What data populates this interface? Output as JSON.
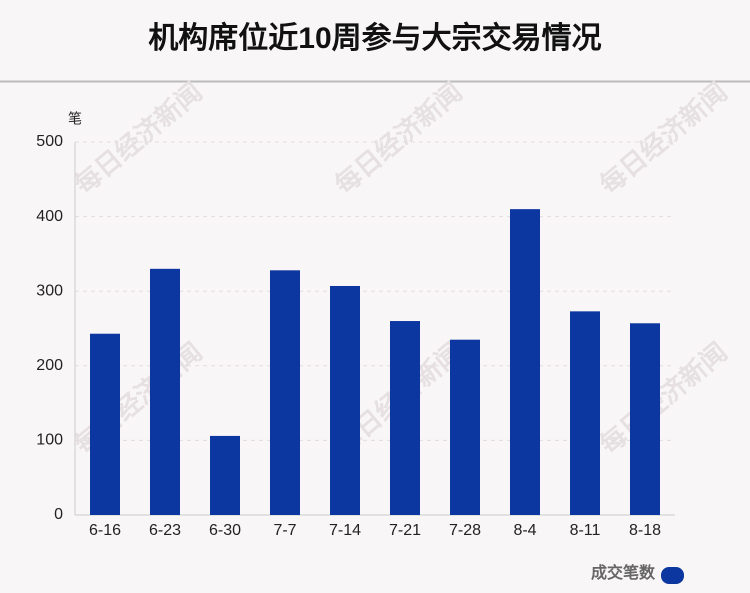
{
  "chart_data": {
    "type": "bar",
    "title": "机构席位近10周参与大宗交易情况",
    "y_label": "笔",
    "watermark": "每日经济新闻",
    "categories": [
      "6-16",
      "6-23",
      "6-30",
      "7-7",
      "7-14",
      "7-21",
      "7-28",
      "8-4",
      "8-11",
      "8-18"
    ],
    "series": [
      {
        "name": "成交笔数",
        "color": "#0c36a0",
        "values": [
          243,
          330,
          106,
          328,
          307,
          260,
          235,
          410,
          273,
          257
        ]
      }
    ],
    "ylim": [
      0,
      500
    ],
    "yticks": [
      0,
      100,
      200,
      300,
      400,
      500
    ],
    "grid": true,
    "legend": "bottom-right"
  }
}
